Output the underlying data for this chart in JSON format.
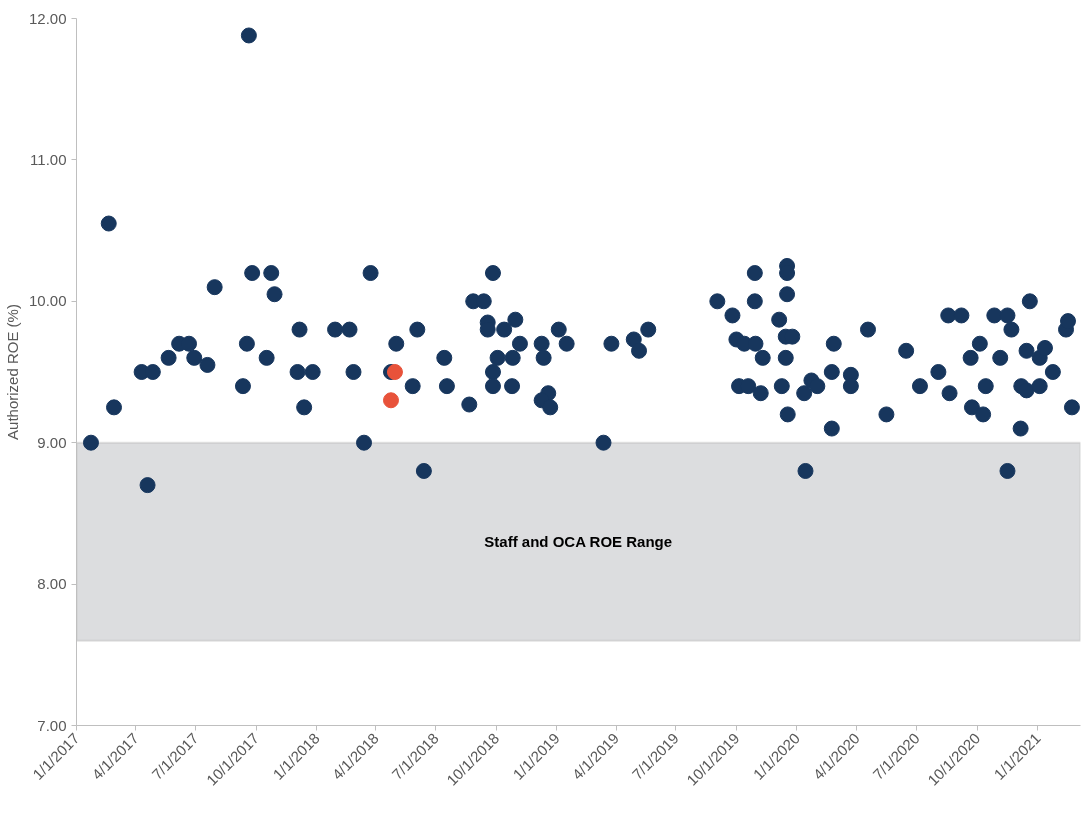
{
  "chart_data": {
    "type": "scatter",
    "ylabel": "Authorized ROE (%)",
    "xlim": [
      "2017-01-01",
      "2021-03-07"
    ],
    "ylim": [
      7,
      12
    ],
    "yticks": [
      {
        "value": 7,
        "label": "7.00"
      },
      {
        "value": 8,
        "label": "8.00"
      },
      {
        "value": 9,
        "label": "9.00"
      },
      {
        "value": 10,
        "label": "10.00"
      },
      {
        "value": 11,
        "label": "11.00"
      },
      {
        "value": 12,
        "label": "12.00"
      }
    ],
    "xticks": [
      {
        "value": "2017-01-01",
        "label": "1/1/2017"
      },
      {
        "value": "2017-04-01",
        "label": "4/1/2017"
      },
      {
        "value": "2017-07-01",
        "label": "7/1/2017"
      },
      {
        "value": "2017-10-01",
        "label": "10/1/2017"
      },
      {
        "value": "2018-01-01",
        "label": "1/1/2018"
      },
      {
        "value": "2018-04-01",
        "label": "4/1/2018"
      },
      {
        "value": "2018-07-01",
        "label": "7/1/2018"
      },
      {
        "value": "2018-10-01",
        "label": "10/1/2018"
      },
      {
        "value": "2019-01-01",
        "label": "1/1/2019"
      },
      {
        "value": "2019-04-01",
        "label": "4/1/2019"
      },
      {
        "value": "2019-07-01",
        "label": "7/1/2019"
      },
      {
        "value": "2019-10-01",
        "label": "10/1/2019"
      },
      {
        "value": "2020-01-01",
        "label": "1/1/2020"
      },
      {
        "value": "2020-04-01",
        "label": "4/1/2020"
      },
      {
        "value": "2020-07-01",
        "label": "7/1/2020"
      },
      {
        "value": "2020-10-01",
        "label": "10/1/2020"
      },
      {
        "value": "2021-01-01",
        "label": "1/1/2021"
      }
    ],
    "grid": false,
    "marker": "circle",
    "bands": [
      {
        "axis": "y",
        "from": 7.6,
        "to": 9.0,
        "label": "Staff and OCA ROE Range",
        "color": "#dcdddf"
      }
    ],
    "series": [
      {
        "color": "#17365d",
        "x": [
          "2017-01-23",
          "2017-02-19",
          "2017-02-27",
          "2017-04-19",
          "2017-04-10",
          "2017-04-27",
          "2017-05-21",
          "2017-06-06",
          "2017-06-21",
          "2017-06-29",
          "2017-07-19",
          "2017-07-30",
          "2017-09-20",
          "2017-09-11",
          "2017-09-17",
          "2017-09-25",
          "2017-10-24",
          "2017-10-29",
          "2017-10-17",
          "2017-12-06",
          "2017-12-03",
          "2017-12-26",
          "2017-12-13",
          "2018-01-29",
          "2018-02-20",
          "2018-02-26",
          "2018-03-14",
          "2018-03-24",
          "2018-04-24",
          "2018-05-02",
          "2018-05-27",
          "2018-06-03",
          "2018-06-13",
          "2018-07-14",
          "2018-07-18",
          "2018-08-21",
          "2018-08-27",
          "2018-09-12",
          "2018-09-26",
          "2018-09-18",
          "2018-09-18",
          "2018-10-13",
          "2018-10-30",
          "2018-10-03",
          "2018-10-26",
          "2018-09-26",
          "2018-09-26",
          "2018-10-25",
          "2018-11-06",
          "2018-12-09",
          "2018-12-12",
          "2019-01-04",
          "2019-01-16",
          "2018-12-19",
          "2018-12-09",
          "2018-12-22",
          "2019-03-13",
          "2019-03-25",
          "2019-04-28",
          "2019-05-06",
          "2019-05-20",
          "2019-09-02",
          "2019-09-25",
          "2019-10-29",
          "2019-10-29",
          "2019-10-01",
          "2019-10-13",
          "2019-10-30",
          "2019-11-10",
          "2019-10-05",
          "2019-10-19",
          "2019-11-07",
          "2019-12-17",
          "2019-12-17",
          "2019-12-17",
          "2019-12-05",
          "2019-12-15",
          "2019-12-25",
          "2019-12-15",
          "2019-12-09",
          "2019-12-18",
          "2020-01-14",
          "2020-01-12",
          "2020-01-23",
          "2020-02-01",
          "2020-02-23",
          "2020-02-26",
          "2020-02-23",
          "2020-03-23",
          "2020-03-23",
          "2020-04-18",
          "2020-05-16",
          "2020-06-15",
          "2020-07-06",
          "2020-08-03",
          "2020-08-20",
          "2020-08-18",
          "2020-09-07",
          "2020-09-21",
          "2020-10-05",
          "2020-09-23",
          "2020-10-10",
          "2020-10-14",
          "2020-10-27",
          "2020-11-16",
          "2020-11-22",
          "2020-11-05",
          "2020-11-16",
          "2020-12-06",
          "2020-12-15",
          "2020-12-20",
          "2020-12-07",
          "2020-12-15",
          "2021-01-04",
          "2021-01-04",
          "2021-01-12",
          "2021-01-24",
          "2021-02-13",
          "2021-02-16",
          "2021-02-22"
        ],
        "values": [
          9.0,
          10.55,
          9.25,
          8.7,
          9.5,
          9.5,
          9.6,
          9.7,
          9.7,
          9.6,
          9.55,
          10.1,
          11.88,
          9.4,
          9.7,
          10.2,
          10.2,
          10.05,
          9.6,
          9.8,
          9.5,
          9.5,
          9.25,
          9.8,
          9.8,
          9.5,
          9.0,
          10.2,
          9.5,
          9.7,
          9.4,
          9.8,
          8.8,
          9.6,
          9.4,
          9.27,
          10.0,
          10.0,
          10.2,
          9.85,
          9.8,
          9.8,
          9.87,
          9.6,
          9.6,
          9.5,
          9.4,
          9.4,
          9.7,
          9.7,
          9.6,
          9.8,
          9.7,
          9.35,
          9.3,
          9.25,
          9.0,
          9.7,
          9.73,
          9.65,
          9.8,
          10.0,
          9.9,
          10.2,
          10.0,
          9.73,
          9.7,
          9.7,
          9.6,
          9.4,
          9.4,
          9.35,
          10.25,
          10.2,
          10.05,
          9.87,
          9.75,
          9.75,
          9.6,
          9.4,
          9.2,
          8.8,
          9.35,
          9.44,
          9.4,
          9.5,
          9.7,
          9.1,
          9.48,
          9.4,
          9.8,
          9.2,
          9.65,
          9.4,
          9.5,
          9.35,
          9.9,
          9.9,
          9.6,
          9.7,
          9.25,
          9.2,
          9.4,
          9.9,
          9.9,
          9.8,
          9.6,
          8.8,
          9.1,
          9.65,
          10.0,
          9.4,
          9.37,
          9.4,
          9.6,
          9.67,
          9.5,
          9.8,
          9.86,
          9.25
        ]
      },
      {
        "color": "#e8523a",
        "x": [
          "2018-04-30",
          "2018-04-24"
        ],
        "values": [
          9.5,
          9.3
        ]
      }
    ]
  }
}
